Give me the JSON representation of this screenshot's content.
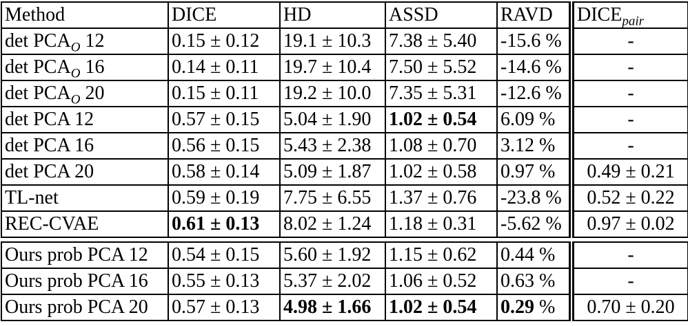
{
  "header": {
    "method": "Method",
    "dice": "DICE",
    "hd": "HD",
    "assd": "ASSD",
    "ravd": "RAVD",
    "dice_pair": {
      "base": "DICE",
      "sub": "pair"
    }
  },
  "colors": {
    "border": "#000000",
    "background": "#ffffff",
    "text": "#000000"
  },
  "tables": [
    {
      "name": "baselines",
      "rows": [
        {
          "method": [
            {
              "t": "det PCA"
            },
            {
              "t": "O",
              "sub": true
            },
            {
              "t": " 12"
            }
          ],
          "cells": {
            "dice": {
              "text": "0.15 ± 0.12",
              "bold": false
            },
            "hd": {
              "text": "19.1 ± 10.3",
              "bold": false
            },
            "assd": {
              "text": "7.38 ± 5.40",
              "bold": false
            },
            "ravd": {
              "text": "-15.6",
              "suffix": " %",
              "bold": false
            },
            "dice_pair": {
              "text": "-",
              "bold": false
            }
          }
        },
        {
          "method": [
            {
              "t": "det PCA"
            },
            {
              "t": "O",
              "sub": true
            },
            {
              "t": " 16"
            }
          ],
          "cells": {
            "dice": {
              "text": "0.14 ± 0.11",
              "bold": false
            },
            "hd": {
              "text": "19.7 ± 10.4",
              "bold": false
            },
            "assd": {
              "text": "7.50 ± 5.52",
              "bold": false
            },
            "ravd": {
              "text": "-14.6",
              "suffix": " %",
              "bold": false
            },
            "dice_pair": {
              "text": "-",
              "bold": false
            }
          }
        },
        {
          "method": [
            {
              "t": "det PCA"
            },
            {
              "t": "O",
              "sub": true
            },
            {
              "t": " 20"
            }
          ],
          "cells": {
            "dice": {
              "text": "0.15 ± 0.11",
              "bold": false
            },
            "hd": {
              "text": "19.2 ± 10.0",
              "bold": false
            },
            "assd": {
              "text": "7.35 ± 5.31",
              "bold": false
            },
            "ravd": {
              "text": "-12.6",
              "suffix": " %",
              "bold": false
            },
            "dice_pair": {
              "text": "-",
              "bold": false
            }
          }
        },
        {
          "method": [
            {
              "t": "det PCA 12"
            }
          ],
          "cells": {
            "dice": {
              "text": "0.57 ± 0.15",
              "bold": false
            },
            "hd": {
              "text": "5.04 ± 1.90",
              "bold": false
            },
            "assd": {
              "text": "1.02 ± 0.54",
              "bold": true
            },
            "ravd": {
              "text": "6.09",
              "suffix": " %",
              "bold": false
            },
            "dice_pair": {
              "text": "-",
              "bold": false
            }
          }
        },
        {
          "method": [
            {
              "t": "det PCA 16"
            }
          ],
          "cells": {
            "dice": {
              "text": "0.56 ± 0.15",
              "bold": false
            },
            "hd": {
              "text": "5.43 ± 2.38",
              "bold": false
            },
            "assd": {
              "text": "1.08 ± 0.70",
              "bold": false
            },
            "ravd": {
              "text": "3.12",
              "suffix": " %",
              "bold": false
            },
            "dice_pair": {
              "text": "-",
              "bold": false
            }
          }
        },
        {
          "method": [
            {
              "t": "det PCA 20"
            }
          ],
          "cells": {
            "dice": {
              "text": "0.58 ± 0.14",
              "bold": false
            },
            "hd": {
              "text": "5.09 ± 1.87",
              "bold": false
            },
            "assd": {
              "text": "1.02 ± 0.58",
              "bold": false
            },
            "ravd": {
              "text": "0.97",
              "suffix": " %",
              "bold": false
            },
            "dice_pair": {
              "text": "0.49 ± 0.21",
              "bold": false
            }
          }
        },
        {
          "method": [
            {
              "t": "TL-net"
            }
          ],
          "cells": {
            "dice": {
              "text": "0.59 ± 0.19",
              "bold": false
            },
            "hd": {
              "text": "7.75 ± 6.55",
              "bold": false
            },
            "assd": {
              "text": "1.37 ± 0.76",
              "bold": false
            },
            "ravd": {
              "text": "-23.8",
              "suffix": " %",
              "bold": false
            },
            "dice_pair": {
              "text": "0.52 ± 0.22",
              "bold": false
            }
          }
        },
        {
          "method": [
            {
              "t": "REC-CVAE"
            }
          ],
          "cells": {
            "dice": {
              "text": "0.61 ± 0.13",
              "bold": true
            },
            "hd": {
              "text": "8.02 ± 1.24",
              "bold": false
            },
            "assd": {
              "text": "1.18 ± 0.31",
              "bold": false
            },
            "ravd": {
              "text": "-5.62",
              "suffix": " %",
              "bold": false
            },
            "dice_pair": {
              "text": "0.97 ± 0.02",
              "bold": false
            }
          }
        }
      ]
    },
    {
      "name": "ours",
      "rows": [
        {
          "method": [
            {
              "t": "Ours prob PCA 12"
            }
          ],
          "cells": {
            "dice": {
              "text": "0.54 ± 0.15",
              "bold": false
            },
            "hd": {
              "text": "5.60 ± 1.92",
              "bold": false
            },
            "assd": {
              "text": "1.15 ± 0.62",
              "bold": false
            },
            "ravd": {
              "text": "0.44",
              "suffix": " %",
              "bold": false
            },
            "dice_pair": {
              "text": "-",
              "bold": false
            }
          }
        },
        {
          "method": [
            {
              "t": "Ours prob PCA 16"
            }
          ],
          "cells": {
            "dice": {
              "text": "0.55 ± 0.13",
              "bold": false
            },
            "hd": {
              "text": "5.37 ± 2.02",
              "bold": false
            },
            "assd": {
              "text": "1.06 ± 0.52",
              "bold": false
            },
            "ravd": {
              "text": "0.63",
              "suffix": " %",
              "bold": false
            },
            "dice_pair": {
              "text": "-",
              "bold": false
            }
          }
        },
        {
          "method": [
            {
              "t": "Ours prob PCA 20"
            }
          ],
          "cells": {
            "dice": {
              "text": "0.57 ± 0.13",
              "bold": false
            },
            "hd": {
              "text": "4.98 ± 1.66",
              "bold": true
            },
            "assd": {
              "text": "1.02 ± 0.54",
              "bold": true
            },
            "ravd": {
              "text": "0.29",
              "suffix": " %",
              "bold": true
            },
            "dice_pair": {
              "text": "0.70 ± 0.20",
              "bold": false
            }
          }
        }
      ]
    }
  ]
}
